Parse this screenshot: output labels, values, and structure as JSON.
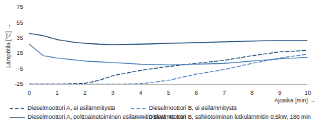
{
  "chart_data": {
    "type": "line",
    "x_label": "Ajoaika [min]",
    "y_label": "Lämpötila [°C]",
    "x": [
      0,
      0.5,
      1,
      1.5,
      2,
      2.5,
      3,
      4,
      5,
      6,
      7,
      8,
      9,
      10
    ],
    "xlim": [
      0,
      10
    ],
    "xticks": [
      0,
      1,
      2,
      3,
      4,
      5,
      6,
      7,
      8,
      9,
      10
    ],
    "ylim": [
      -25,
      75
    ],
    "yticks": [
      -25,
      -5,
      15,
      35,
      55,
      75
    ],
    "grid": false,
    "legend": "bottom",
    "series": [
      {
        "name": "Dieselmoottori A, ei esilämmitystä",
        "color": "#1f4e79",
        "line_style": "dashed",
        "values": [
          -25,
          -25,
          -25,
          -24.5,
          -24,
          -20,
          -14,
          -7,
          -2,
          2,
          6,
          12,
          17,
          19
        ]
      },
      {
        "name": "Dieselmoottori A, polttoainetoiminen esilämmitin 5kW, 40 min",
        "color": "#1f4e79",
        "line_style": "solid",
        "values": [
          41,
          38,
          33,
          30,
          28,
          27,
          26.5,
          27,
          28,
          29,
          30,
          31,
          32,
          32
        ]
      },
      {
        "name": "Dieselmoottori B, ei esilämmitystä",
        "color": "#4f81bd",
        "line_style": "dashed",
        "values": [
          -25,
          -25,
          -25,
          -25,
          -25,
          -25,
          -25,
          -24.5,
          -20,
          -12,
          -6,
          2,
          9,
          14
        ]
      },
      {
        "name": "Dieselmoottori B, sähkötoiminen letkulämmitin 0.5kW, 180 min",
        "color": "#4f81bd",
        "line_style": "solid",
        "values": [
          27,
          12,
          9,
          7,
          5,
          4,
          3,
          1,
          0,
          1,
          2,
          5,
          8,
          10
        ]
      }
    ]
  }
}
